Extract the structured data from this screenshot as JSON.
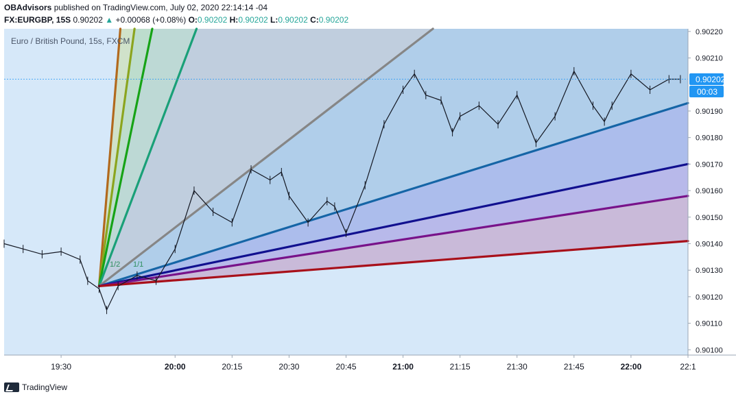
{
  "header": {
    "publisher": "OBAdvisors",
    "published_text": "published on TradingView.com, July 02, 2020 22:14:14 -04",
    "symbol": "FX:EURGBP, 15S",
    "last": "0.90202",
    "change_arrow": "▲",
    "change": "+0.00068 (+0.08%)",
    "o_label": "O:",
    "o_value": "0.90202",
    "h_label": "H:",
    "h_value": "0.90202",
    "l_label": "L:",
    "l_value": "0.90202",
    "c_label": "C:",
    "c_value": "0.90202"
  },
  "footer": {
    "brand": "TradingView"
  },
  "colors": {
    "background": "#d6e8f9",
    "candle": "#131722",
    "price_line": "#2196f3",
    "fan_lines": [
      "#b2691d",
      "#8ba51e",
      "#16a316",
      "#1aa078",
      "#868686",
      "#1565a6",
      "#11108f",
      "#78128a",
      "#a8101a"
    ],
    "fan_fills": [
      "#d9d5c5",
      "#cfe0c2",
      "#b9dbc6",
      "#b9d6cf",
      "#bcc9d9",
      "#a9c9e8",
      "#a5b5ea",
      "#b3b0e8",
      "#c7b2d3"
    ]
  },
  "chart_data": {
    "type": "line",
    "title": "Euro / British Pound, 15s, FXCM",
    "x_tick_labels": [
      "19:30",
      "20:00",
      "20:15",
      "20:30",
      "20:45",
      "21:00",
      "21:15",
      "21:30",
      "21:45",
      "22:00",
      "22:1"
    ],
    "bold_x_ticks": [
      "20:00",
      "21:00",
      "22:00"
    ],
    "y_tick_labels": [
      "0.90100",
      "0.90110",
      "0.90120",
      "0.90130",
      "0.90140",
      "0.90150",
      "0.90160",
      "0.90170",
      "0.90180",
      "0.90190",
      "0.90210",
      "0.90220"
    ],
    "ylim": [
      0.90098,
      0.90221
    ],
    "xlim_minutes_from_1930": [
      -15,
      165
    ],
    "last_price_label": "0.90202",
    "countdown_label": "00:03",
    "last_price": 0.90202,
    "fan_origin": {
      "time": "19:40",
      "price": 0.90124
    },
    "fan_ratio_labels": [
      "1/2",
      "1/1"
    ],
    "gann_fan": [
      {
        "ratio": "8/1",
        "to_time": "19:52",
        "to_price": 0.90332
      },
      {
        "ratio": "4/1",
        "to_time": "20:00",
        "to_price": 0.90332
      },
      {
        "ratio": "3/1",
        "to_time": "20:10",
        "to_price": 0.90332
      },
      {
        "ratio": "2/1",
        "to_time": "20:35",
        "to_price": 0.90332
      },
      {
        "ratio": "1/1",
        "to_time": "21:45",
        "to_price": 0.90262
      },
      {
        "ratio": "1/2",
        "to_time": "22:15",
        "to_price": 0.90193
      },
      {
        "ratio": "1/3",
        "to_time": "22:15",
        "to_price": 0.9017
      },
      {
        "ratio": "1/4",
        "to_time": "22:15",
        "to_price": 0.90158
      },
      {
        "ratio": "1/8",
        "to_time": "22:15",
        "to_price": 0.90141
      }
    ],
    "price_series": {
      "times": [
        "19:15",
        "19:20",
        "19:25",
        "19:30",
        "19:35",
        "19:37",
        "19:40",
        "19:42",
        "19:45",
        "19:50",
        "19:55",
        "20:00",
        "20:05",
        "20:10",
        "20:15",
        "20:20",
        "20:25",
        "20:28",
        "20:30",
        "20:35",
        "20:40",
        "20:42",
        "20:45",
        "20:50",
        "20:55",
        "21:00",
        "21:03",
        "21:06",
        "21:10",
        "21:13",
        "21:15",
        "21:20",
        "21:25",
        "21:30",
        "21:35",
        "21:40",
        "21:45",
        "21:50",
        "21:53",
        "21:55",
        "22:00",
        "22:05",
        "22:10",
        "22:13"
      ],
      "values": [
        0.9014,
        0.90138,
        0.90136,
        0.90137,
        0.90134,
        0.90126,
        0.90123,
        0.90115,
        0.90124,
        0.90128,
        0.90126,
        0.90138,
        0.9016,
        0.90152,
        0.90148,
        0.90168,
        0.90164,
        0.90167,
        0.90158,
        0.90148,
        0.90156,
        0.90154,
        0.90144,
        0.90162,
        0.90185,
        0.90198,
        0.90204,
        0.90196,
        0.90194,
        0.90182,
        0.90188,
        0.90192,
        0.90185,
        0.90196,
        0.90178,
        0.90188,
        0.90205,
        0.90192,
        0.90186,
        0.90192,
        0.90204,
        0.90198,
        0.90202,
        0.90202
      ]
    }
  }
}
